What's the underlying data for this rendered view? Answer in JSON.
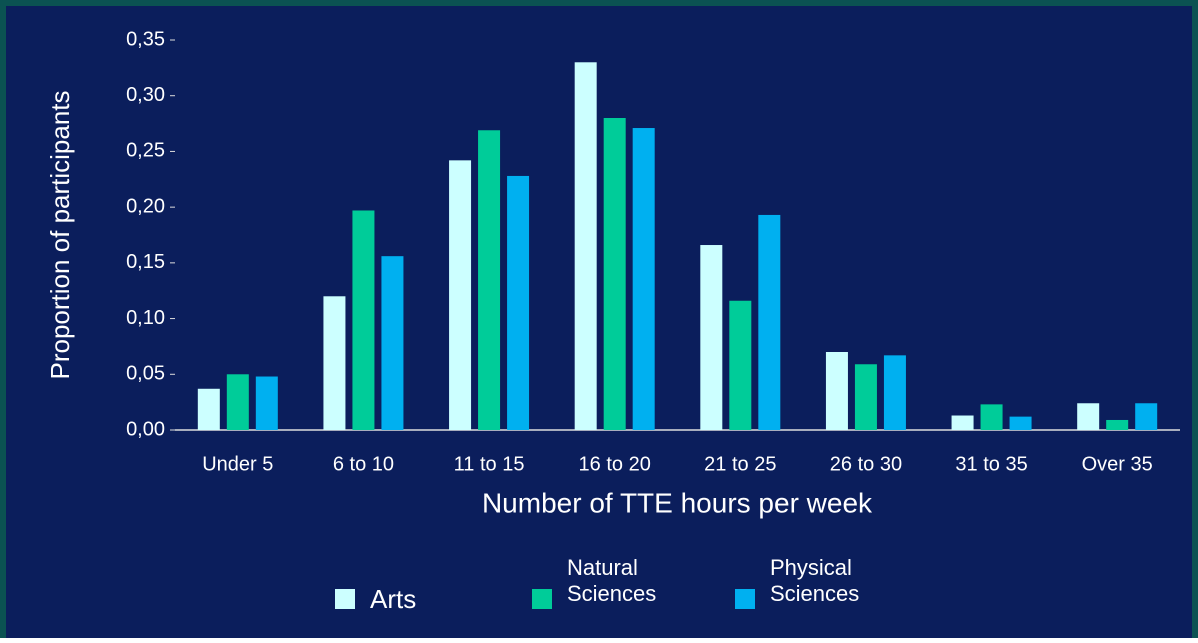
{
  "chart_data": {
    "type": "bar",
    "y_label": "Proportion of participants",
    "x_label": "Number of TTE hours per week",
    "categories": [
      "Under 5",
      "6 to 10",
      "11 to 15",
      "16 to 20",
      "21 to 25",
      "26 to 30",
      "31 to 35",
      "Over 35"
    ],
    "series": [
      {
        "name": "Arts",
        "color": "#ccffff",
        "values": [
          0.037,
          0.12,
          0.242,
          0.33,
          0.166,
          0.07,
          0.013,
          0.024
        ]
      },
      {
        "name": "Natural Sciences",
        "color": "#00cc99",
        "values": [
          0.05,
          0.197,
          0.269,
          0.28,
          0.116,
          0.059,
          0.023,
          0.009
        ]
      },
      {
        "name": "Physical Sciences",
        "color": "#00b0f0",
        "values": [
          0.048,
          0.156,
          0.228,
          0.271,
          0.193,
          0.067,
          0.012,
          0.024
        ]
      }
    ],
    "ylim": [
      0,
      0.35
    ],
    "yticks": [
      {
        "value": 0,
        "label": "0,00"
      },
      {
        "value": 0.05,
        "label": "0,05"
      },
      {
        "value": 0.1,
        "label": "0,10"
      },
      {
        "value": 0.15,
        "label": "0,15"
      },
      {
        "value": 0.2,
        "label": "0,20"
      },
      {
        "value": 0.25,
        "label": "0,25"
      },
      {
        "value": 0.3,
        "label": "0,30"
      },
      {
        "value": 0.35,
        "label": "0,35"
      }
    ],
    "legend": "bottom"
  }
}
